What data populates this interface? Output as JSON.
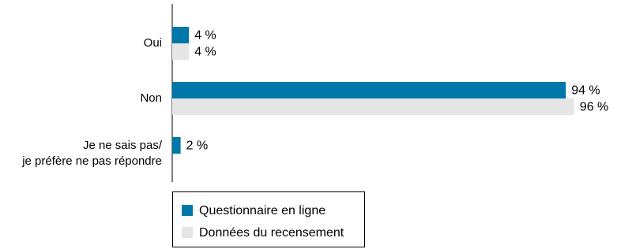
{
  "chart_data": {
    "type": "bar",
    "orientation": "horizontal",
    "categories": [
      "Oui",
      "Non",
      "Je ne sais pas/\nje préfère ne pas répondre"
    ],
    "series": [
      {
        "name": "Questionnaire en ligne",
        "color": "#0077a8",
        "values": [
          4,
          94,
          2
        ],
        "value_labels": [
          "4 %",
          "94 %",
          "2 %"
        ]
      },
      {
        "name": "Données du recensement",
        "color": "#e6e6e6",
        "values": [
          4,
          96,
          null
        ],
        "value_labels": [
          "4 %",
          "96 %",
          null
        ]
      }
    ],
    "xlim": [
      0,
      100
    ]
  }
}
